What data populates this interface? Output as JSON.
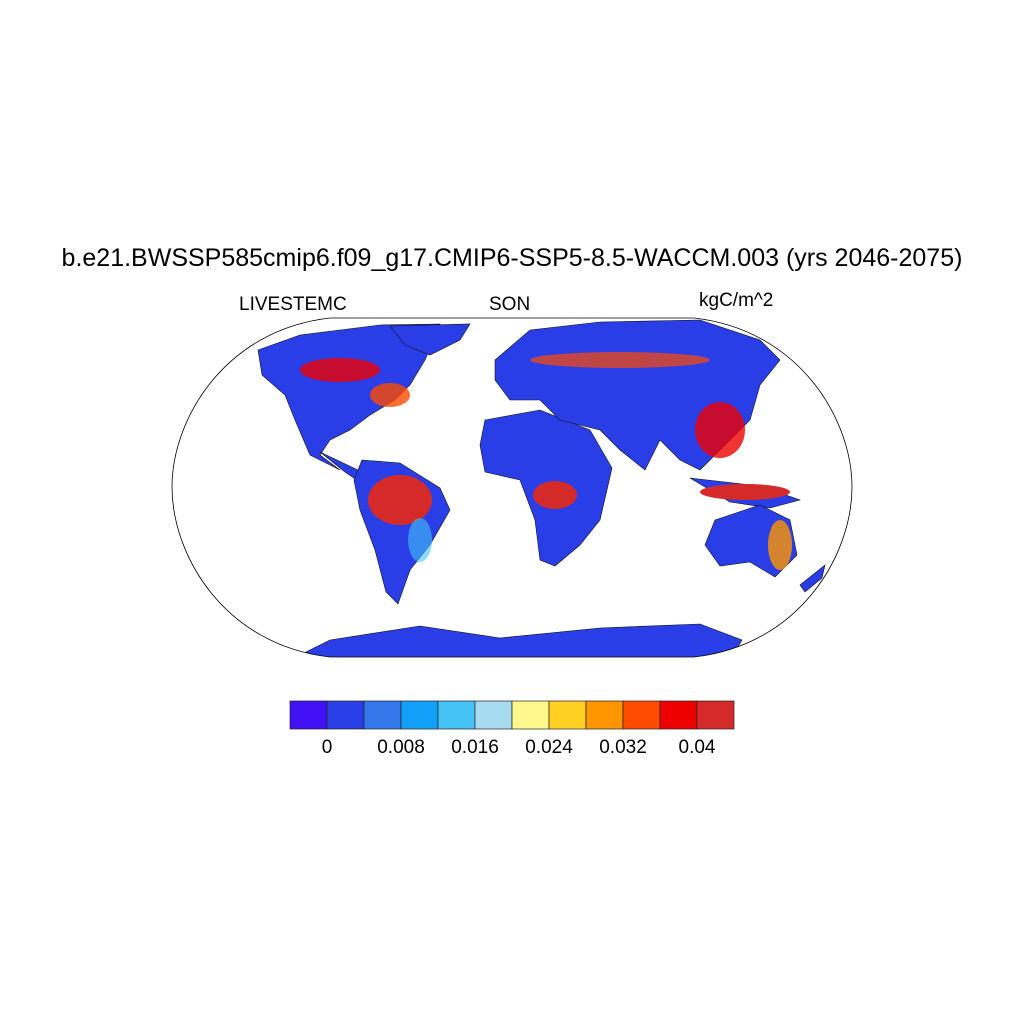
{
  "title": "b.e21.BWSSP585cmip6.f09_g17.CMIP6-SSP5-8.5-WACCM.003 (yrs 2046-2075)",
  "left_label": "LIVESTEMC",
  "center_label": "SON",
  "right_label": "kgC/m^2",
  "projection": "Robinson",
  "colorbar": {
    "levels": [
      0,
      0.004,
      0.008,
      0.012,
      0.016,
      0.02,
      0.024,
      0.028,
      0.032,
      0.036,
      0.04
    ],
    "labels": [
      "0",
      "0.008",
      "0.016",
      "0.024",
      "0.032",
      "0.04"
    ],
    "colors": [
      "#4210f5",
      "#2a3ee8",
      "#3478ec",
      "#12a0fa",
      "#45c3f7",
      "#a8daf0",
      "#fff78c",
      "#ffcf22",
      "#ff9500",
      "#ff4a00",
      "#ef0000",
      "#d42a2a"
    ]
  }
}
